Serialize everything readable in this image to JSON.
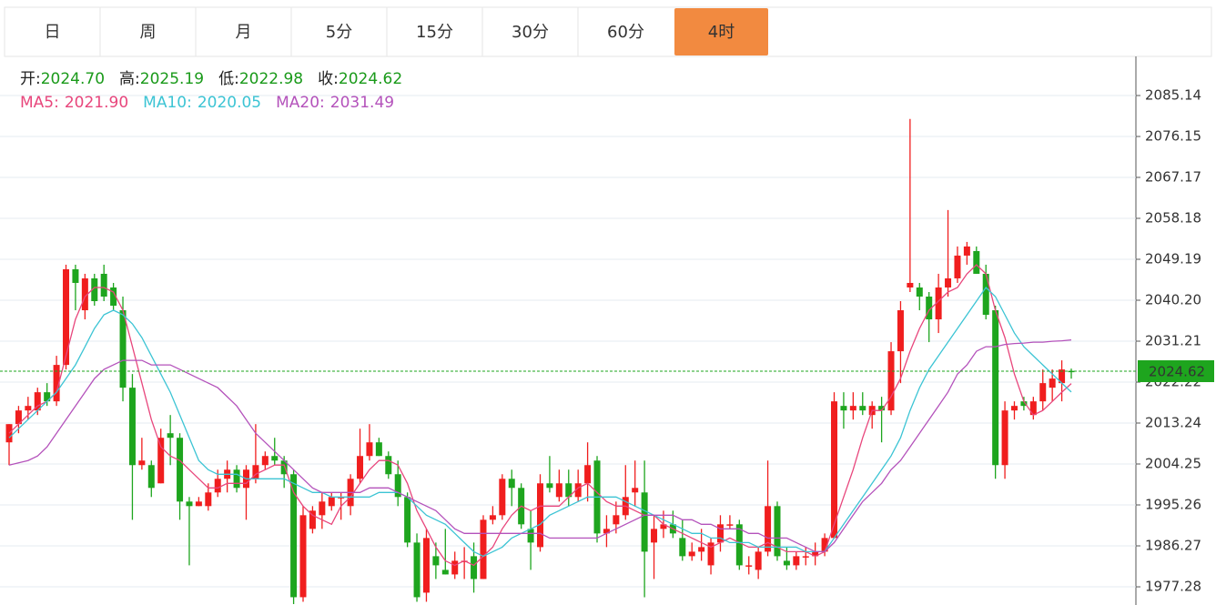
{
  "tabs": [
    "日",
    "周",
    "月",
    "5分",
    "15分",
    "30分",
    "60分",
    "4时"
  ],
  "active_tab": 7,
  "ohlc_info": [
    {
      "label": "开:",
      "value": "2024.70"
    },
    {
      "label": "高:",
      "value": "2025.19"
    },
    {
      "label": "低:",
      "value": "2022.98"
    },
    {
      "label": "收:",
      "value": "2024.62"
    }
  ],
  "ma_info": [
    {
      "label": "MA5:",
      "value": "2021.90"
    },
    {
      "label": "MA10:",
      "value": "2020.05"
    },
    {
      "label": "MA20:",
      "value": "2031.49"
    }
  ],
  "chart_data": {
    "type": "candlestick",
    "up_color": "#f01e1e",
    "down_color": "#1ea51e",
    "ylim": [
      1973.29,
      2093.73
    ],
    "yticks": [
      2085.14,
      2076.15,
      2067.17,
      2058.18,
      2049.19,
      {
        "value": 2040.2,
        "label": "2040.20"
      },
      2031.21,
      2022.22,
      2013.24,
      2004.25,
      1995.26,
      1986.27,
      1977.28
    ],
    "grid": true,
    "open": [
      2009,
      2013,
      2016,
      2016,
      2020,
      2018,
      2026,
      2047,
      2038,
      2045,
      2046,
      2043,
      2038,
      2021,
      2004,
      2004,
      2000,
      2011,
      2010,
      1996,
      1995,
      1995,
      1998,
      2001,
      2003,
      1999,
      2001,
      2004,
      2006,
      2005,
      2002,
      1975,
      1990,
      1993,
      1995,
      1997,
      1995,
      2001,
      2006,
      2009,
      2006,
      2002,
      1997,
      1987,
      1976,
      1984,
      1981,
      1980,
      1983,
      1984,
      1979,
      1992,
      1993,
      2001,
      1999,
      1990,
      1986,
      2000,
      1997,
      2000,
      1997,
      2000,
      2005,
      1989,
      1991,
      1993,
      1998,
      1998,
      1987,
      1990,
      1991,
      1988,
      1984,
      1985,
      1982,
      1987,
      1991,
      1991,
      1982,
      1981,
      1985,
      1995,
      1983,
      1982,
      1984,
      1984,
      1985,
      1988,
      2017,
      2016,
      2017,
      2015,
      2017,
      2016,
      2029,
      2043,
      2043,
      2041,
      2036,
      2043,
      2045,
      2050,
      2051,
      2046,
      2038,
      2004,
      2016,
      2018,
      2015,
      2018,
      2021,
      2022,
      2024.7
    ],
    "high": [
      2013,
      2017,
      2019,
      2021,
      2022,
      2028,
      2048,
      2048,
      2046,
      2046,
      2048,
      2044,
      2041,
      2024,
      2010,
      2005,
      2012,
      2015,
      2011,
      1997,
      1997,
      2000,
      2003,
      2005,
      2004,
      2004,
      2013,
      2007,
      2010,
      2006,
      2003,
      1995,
      1995,
      1998,
      1998,
      1998,
      2002,
      2012,
      2013,
      2010,
      2007,
      2005,
      1998,
      1989,
      1990,
      1987,
      1990,
      1985,
      1986,
      1987,
      1993,
      1995,
      2002,
      2003,
      2000,
      1994,
      2002,
      2006,
      2003,
      2003,
      2003,
      2009,
      2006,
      1993,
      1996,
      2004,
      2005,
      2005,
      1993,
      1994,
      1994,
      1992,
      1987,
      1990,
      1988,
      1993,
      1993,
      1992,
      1984,
      1986,
      2005,
      1996,
      1986,
      1985,
      1986,
      1987,
      1989,
      2020,
      2020,
      2020,
      2020,
      2018,
      2019,
      2031,
      2040,
      2080,
      2044,
      2042,
      2046,
      2060,
      2052,
      2053,
      2052,
      2048,
      2039,
      2018,
      2018,
      2019,
      2019,
      2025,
      2025,
      2027,
      2025.19
    ],
    "low": [
      2004,
      2011,
      2014,
      2015,
      2017,
      2017,
      2025,
      2038,
      2036,
      2039,
      2040,
      2038,
      2018,
      1992,
      2003,
      1997,
      2000,
      2004,
      1992,
      1982,
      1995,
      1994,
      1997,
      1998,
      1998,
      1992,
      2000,
      2003,
      2004,
      1999,
      1973.5,
      1974,
      1989,
      1990,
      1994,
      1992,
      1993,
      2000,
      2005,
      2006,
      2001,
      1995,
      1986,
      1974,
      1974,
      1979,
      1980,
      1979,
      1979,
      1976,
      1979,
      1991,
      1992,
      1995,
      1990,
      1981,
      1985,
      1998,
      1996,
      1995,
      1996,
      1996,
      1987,
      1986,
      1989,
      1992,
      1995,
      1975,
      1979,
      1988,
      1988,
      1983,
      1983,
      1983,
      1980,
      1985,
      1990,
      1981,
      1980,
      1979,
      1984,
      1983,
      1981,
      1981,
      1982,
      1982,
      1984,
      1988,
      2012,
      2014,
      2015,
      2012,
      2009,
      2015,
      2022,
      2042,
      2038,
      2031,
      2033,
      2041,
      2044,
      2048,
      2046,
      2036,
      2001,
      2001,
      2014,
      2016,
      2014,
      2016,
      2018,
      2018,
      2022.98
    ],
    "close": [
      2013,
      2016,
      2017,
      2020,
      2018,
      2026,
      2047,
      2044,
      2045,
      2040,
      2041,
      2039,
      2021,
      2004,
      2005,
      1999,
      2010,
      2010,
      1996,
      1995,
      1996,
      1998,
      2001,
      2003,
      1999,
      2003,
      2004,
      2006,
      2005,
      2002,
      1975,
      1993,
      1994,
      1996,
      1997,
      1997,
      2001,
      2006,
      2009,
      2006,
      2002,
      1997,
      1987,
      1975,
      1988,
      1982,
      1980,
      1983,
      1983,
      1979,
      1992,
      1993,
      2001,
      1999,
      1991,
      1987,
      2000,
      1999,
      2000,
      1997,
      2000,
      2004,
      1989,
      1990,
      1993,
      1997,
      1999,
      1985,
      1990,
      1991,
      1989,
      1984,
      1985,
      1986,
      1987,
      1991,
      1991,
      1982,
      1982,
      1985,
      1995,
      1984,
      1982,
      1984,
      1984,
      1985,
      1988,
      2018,
      2016,
      2017,
      2016,
      2017,
      2016,
      2029,
      2038,
      2044,
      2041,
      2036,
      2043,
      2045,
      2050,
      2052,
      2046,
      2037,
      2004,
      2016,
      2017,
      2017,
      2018,
      2022,
      2023,
      2025,
      2024.62
    ],
    "series": [
      {
        "name": "MA5",
        "color": "#e8467c",
        "values": [
          2011,
          2013,
          2015,
          2017,
          2018,
          2020,
          2028,
          2036,
          2041,
          2043,
          2043,
          2042,
          2038,
          2030,
          2022,
          2014,
          2008,
          2006,
          2005,
          2003,
          2001,
          1999,
          1999,
          2000,
          2000,
          2000,
          2002,
          2003,
          2004,
          2004,
          1998,
          1995,
          1993,
          1992,
          1991,
          1995,
          1997,
          2000,
          2003,
          2005,
          2005,
          2004,
          2000,
          1994,
          1990,
          1986,
          1983,
          1982,
          1983,
          1982,
          1984,
          1986,
          1990,
          1993,
          1995,
          1994,
          1995,
          1995,
          1995,
          1997,
          1999,
          2000,
          1998,
          1996,
          1995,
          1995,
          1994,
          1993,
          1993,
          1991,
          1990,
          1989,
          1988,
          1987,
          1986,
          1987,
          1988,
          1987,
          1986,
          1986,
          1987,
          1986,
          1985,
          1985,
          1985,
          1984,
          1985,
          1991,
          1997,
          2003,
          2010,
          2016,
          2016,
          2019,
          2023,
          2029,
          2034,
          2038,
          2040,
          2042,
          2043,
          2046,
          2048,
          2046,
          2038,
          2032,
          2024,
          2018,
          2015,
          2016,
          2018,
          2020,
          2021.9
        ]
      },
      {
        "name": "MA10",
        "color": "#3cc4d4",
        "values": [
          2010,
          2012,
          2014,
          2016,
          2018,
          2020,
          2023,
          2026,
          2030,
          2034,
          2037,
          2038,
          2037,
          2035,
          2032,
          2028,
          2024,
          2020,
          2015,
          2010,
          2005,
          2003,
          2002,
          2002,
          2002,
          2001,
          2001,
          2001,
          2001,
          2001,
          2000,
          1999,
          1998,
          1998,
          1997,
          1997,
          1997,
          1997,
          1997,
          1998,
          1998,
          1998,
          1997,
          1995,
          1993,
          1992,
          1991,
          1989,
          1987,
          1985,
          1984,
          1985,
          1986,
          1988,
          1989,
          1990,
          1991,
          1993,
          1994,
          1995,
          1996,
          1997,
          1997,
          1997,
          1997,
          1996,
          1995,
          1994,
          1993,
          1992,
          1991,
          1990,
          1989,
          1989,
          1988,
          1988,
          1987,
          1987,
          1987,
          1986,
          1986,
          1986,
          1986,
          1986,
          1985,
          1985,
          1985,
          1988,
          1991,
          1994,
          1997,
          2000,
          2003,
          2006,
          2010,
          2016,
          2021,
          2025,
          2028,
          2031,
          2034,
          2037,
          2040,
          2043,
          2041,
          2037,
          2033,
          2030,
          2028,
          2026,
          2024,
          2022,
          2020.05
        ]
      },
      {
        "name": "MA20",
        "color": "#b452bb",
        "values": [
          2004,
          2004.5,
          2005,
          2006,
          2008,
          2011,
          2014,
          2017,
          2020,
          2023,
          2025,
          2026,
          2027,
          2027,
          2027,
          2026,
          2026,
          2026,
          2025,
          2024,
          2023,
          2022,
          2021,
          2019,
          2017,
          2014,
          2011,
          2009,
          2007,
          2005,
          2003,
          2001,
          1999,
          1998,
          1998,
          1998,
          1998,
          1998,
          1999,
          1999,
          1999,
          1998,
          1997,
          1996,
          1995,
          1994,
          1992,
          1990,
          1989,
          1989,
          1989,
          1989,
          1989,
          1989,
          1989,
          1989,
          1989,
          1988,
          1988,
          1988,
          1988,
          1988,
          1988,
          1989,
          1990,
          1991,
          1992,
          1993,
          1993,
          1993,
          1993,
          1992,
          1992,
          1991,
          1991,
          1990,
          1990,
          1990,
          1989,
          1989,
          1988,
          1988,
          1988,
          1987,
          1986,
          1985,
          1985,
          1987,
          1990,
          1993,
          1996,
          1998,
          2000,
          2003,
          2005,
          2008,
          2011,
          2014,
          2017,
          2020,
          2024,
          2026,
          2029,
          2030,
          2030,
          2030.5,
          2030.7,
          2030.8,
          2031,
          2031,
          2031.2,
          2031.3,
          2031.49
        ]
      }
    ]
  }
}
